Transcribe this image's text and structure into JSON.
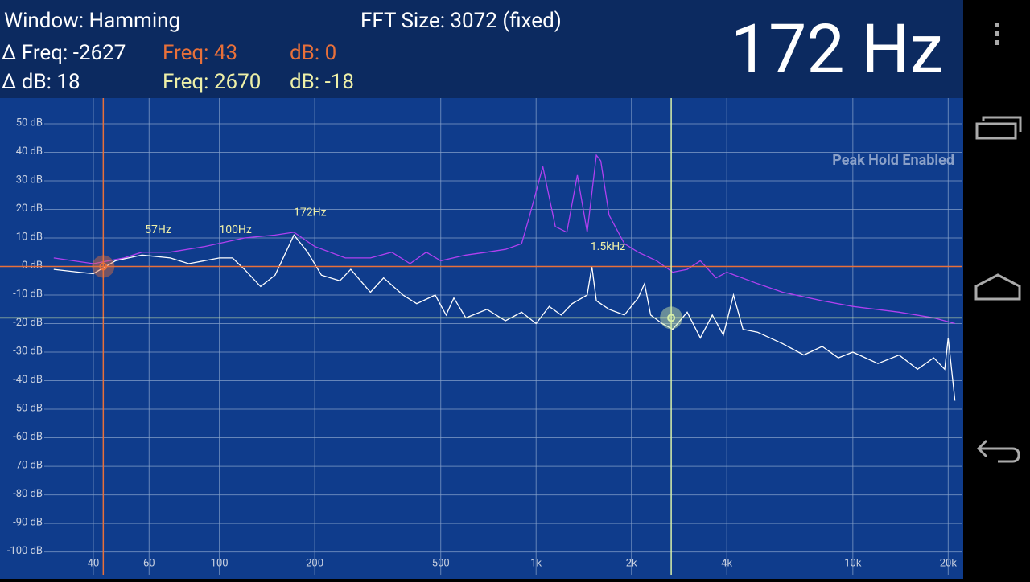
{
  "header": {
    "window": "Window: Hamming",
    "fft_size": "FFT Size: 3072 (fixed)",
    "peak_display": "172 Hz",
    "delta_freq": "Δ Freq: -2627",
    "delta_db": "Δ dB: 18",
    "cursor1_freq": "Freq: 43",
    "cursor1_db": "dB: 0",
    "cursor2_freq": "Freq: 2670",
    "cursor2_db": "dB: -18"
  },
  "chart_data": {
    "type": "line",
    "annotation": "Peak Hold Enabled",
    "log_x": true,
    "grid": true,
    "xlim": [
      28,
      22050
    ],
    "ylim": [
      -108,
      59
    ],
    "xticks": [
      40,
      60,
      100,
      200,
      500,
      {
        "value": 1000,
        "label": "1k"
      },
      {
        "value": 2000,
        "label": "2k"
      },
      {
        "value": 4000,
        "label": "4k"
      },
      {
        "value": 10000,
        "label": "10k"
      },
      {
        "value": 20000,
        "label": "20k"
      }
    ],
    "yticks": [
      {
        "value": 50,
        "label": "50 dB"
      },
      {
        "value": 40,
        "label": "40 dB"
      },
      {
        "value": 30,
        "label": "30 dB"
      },
      {
        "value": 20,
        "label": "20 dB"
      },
      {
        "value": 10,
        "label": "10 dB"
      },
      {
        "value": 0,
        "label": "0 dB"
      },
      {
        "value": -10,
        "label": "-10 dB"
      },
      {
        "value": -20,
        "label": "-20 dB"
      },
      {
        "value": -30,
        "label": "-30 dB"
      },
      {
        "value": -40,
        "label": "-40 dB"
      },
      {
        "value": -50,
        "label": "-50 dB"
      },
      {
        "value": -60,
        "label": "-60 dB"
      },
      {
        "value": -70,
        "label": "-70 dB"
      },
      {
        "value": -80,
        "label": "-80 dB"
      },
      {
        "value": -90,
        "label": "-90 dB"
      },
      {
        "value": -100,
        "label": "-100 dB"
      }
    ],
    "series": [
      {
        "color": "#b040f0",
        "x": [
          30,
          40,
          50,
          57,
          70,
          90,
          120,
          150,
          172,
          200,
          250,
          300,
          350,
          400,
          450,
          500,
          600,
          700,
          800,
          900,
          950,
          1050,
          1150,
          1250,
          1350,
          1450,
          1550,
          1600,
          1700,
          1900,
          2100,
          2400,
          2700,
          3000,
          3300,
          3700,
          4000,
          5000,
          6000,
          8000,
          10000,
          14000,
          18000,
          21000
        ],
        "values": [
          3,
          1,
          3,
          5,
          5,
          7,
          10,
          11,
          12,
          7,
          3,
          3,
          5,
          1,
          5,
          2,
          4,
          5,
          6,
          8,
          17,
          35,
          14,
          12,
          32,
          12,
          39,
          37,
          18,
          8,
          5,
          2,
          -2,
          -1,
          2,
          -4,
          -2,
          -6,
          -9,
          -12,
          -14,
          -16,
          -18,
          -20
        ]
      },
      {
        "color": "#ffffff",
        "x": [
          30,
          36,
          40,
          47,
          57,
          70,
          80,
          100,
          110,
          120,
          135,
          150,
          172,
          190,
          210,
          240,
          260,
          300,
          330,
          380,
          420,
          480,
          520,
          550,
          600,
          700,
          800,
          900,
          1000,
          1100,
          1200,
          1300,
          1450,
          1500,
          1550,
          1700,
          1900,
          2100,
          2200,
          2300,
          2500,
          2700,
          3000,
          3300,
          3600,
          3900,
          4200,
          4500,
          5000,
          6000,
          7000,
          8000,
          9000,
          10000,
          12000,
          14000,
          16000,
          18000,
          19500,
          20000,
          21000
        ],
        "values": [
          -1,
          -2,
          -2.5,
          2,
          4,
          3,
          1,
          3,
          3,
          -1,
          -7,
          -3,
          11,
          5,
          -3,
          -5,
          -1,
          -9,
          -4,
          -10,
          -13,
          -10,
          -17,
          -11,
          -18,
          -15,
          -19,
          -16,
          -20,
          -14,
          -17,
          -13,
          -10,
          0,
          -12,
          -15,
          -17,
          -11,
          -6,
          -17,
          -20,
          -22,
          -16,
          -25,
          -17,
          -24,
          -10,
          -22,
          -23,
          -27,
          -31,
          -28,
          -32,
          -30,
          -34,
          -31,
          -36,
          -32,
          -36,
          -25,
          -47
        ]
      }
    ],
    "peaks": [
      {
        "label": "57Hz",
        "freq": 57,
        "db": 6
      },
      {
        "label": "100Hz",
        "freq": 100,
        "db": 6
      },
      {
        "label": "172Hz",
        "freq": 172,
        "db": 12
      },
      {
        "label": "1.5kHz",
        "freq": 1500,
        "db": 0
      }
    ],
    "cursors": [
      {
        "freq": 43,
        "db": 0,
        "color": "#e8703a"
      },
      {
        "freq": 2670,
        "db": -18,
        "color": "#d8f0a8"
      }
    ]
  }
}
